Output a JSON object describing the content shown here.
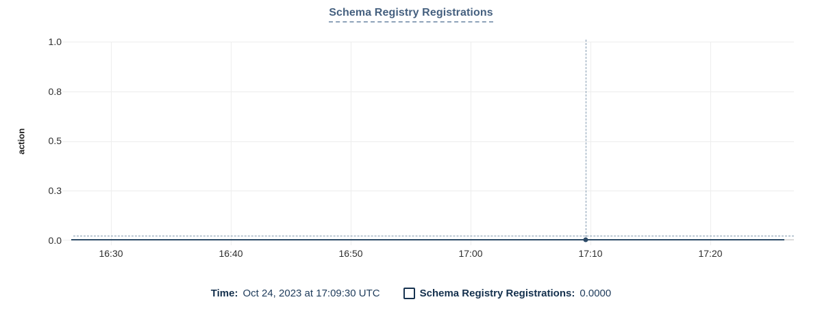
{
  "title": "Schema Registry Registrations",
  "y_axis": {
    "label": "action",
    "ticks": [
      "1.0",
      "0.8",
      "0.5",
      "0.3",
      "0.0"
    ]
  },
  "x_axis": {
    "ticks": [
      "16:30",
      "16:40",
      "16:50",
      "17:00",
      "17:10",
      "17:20"
    ]
  },
  "tooltip": {
    "time_label": "Time:",
    "time_value": "Oct 24, 2023 at 17:09:30 UTC",
    "series_label": "Schema Registry Registrations:",
    "series_value": "0.0000"
  },
  "colors": {
    "title": "#45607f",
    "title_underline": "#8ca1b8",
    "series_line": "#2c4a67",
    "pending_segment": "#dbdbdb",
    "crosshair": "#7f97ae",
    "legend_text": "#16324f",
    "gridline": "#ececec"
  },
  "chart_data": {
    "type": "line",
    "title": "Schema Registry Registrations",
    "xlabel": "",
    "ylabel": "action",
    "ylim": [
      0,
      1.0
    ],
    "y_ticks": [
      0.0,
      0.25,
      0.5,
      0.75,
      1.0
    ],
    "y_tick_labels": [
      "0.0",
      "0.3",
      "0.5",
      "0.8",
      "1.0"
    ],
    "x_ticks": [
      "16:30",
      "16:40",
      "16:50",
      "17:00",
      "17:10",
      "17:20"
    ],
    "x_range": [
      "16:26:30",
      "17:26:30"
    ],
    "grid": true,
    "legend_position": "bottom",
    "series": [
      {
        "name": "Schema Registry Registrations",
        "points": [
          {
            "x": "16:26:30",
            "y": 0.0
          },
          {
            "x": "16:30:00",
            "y": 0.0
          },
          {
            "x": "16:40:00",
            "y": 0.0
          },
          {
            "x": "16:50:00",
            "y": 0.0
          },
          {
            "x": "17:00:00",
            "y": 0.0
          },
          {
            "x": "17:09:30",
            "y": 0.0
          },
          {
            "x": "17:20:00",
            "y": 0.0
          },
          {
            "x": "17:25:30",
            "y": 0.0
          }
        ],
        "description": "constant zero across the entire visible time window"
      }
    ],
    "crosshair": {
      "x": "17:09:30",
      "y": 0.0,
      "value_label": "0.0000"
    }
  }
}
